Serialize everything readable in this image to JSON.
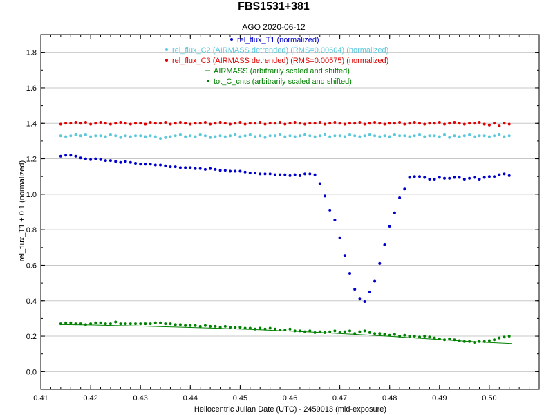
{
  "chart_data": {
    "type": "scatter",
    "title": "FBS1531+381",
    "subtitle": "AGO 2020-06-12",
    "xlabel": "Heliocentric Julian Date (UTC) - 2459013 (mid-exposure)",
    "ylabel": "rel_flux_T1 + 0.1 (normalized)",
    "xlim": [
      0.41,
      0.51
    ],
    "ylim": [
      -0.1,
      1.9
    ],
    "xticks": [
      0.41,
      0.42,
      0.43,
      0.44,
      0.45,
      0.46,
      0.47,
      0.48,
      0.49,
      0.5
    ],
    "xtick_labels": [
      "0.41",
      "0.42",
      "0.43",
      "0.44",
      "0.45",
      "0.46",
      "0.47",
      "0.48",
      "0.49",
      "0.50"
    ],
    "yticks": [
      0.0,
      0.2,
      0.4,
      0.6,
      0.8,
      1.0,
      1.2,
      1.4,
      1.6,
      1.8
    ],
    "ytick_labels": [
      "0.0",
      "0.2",
      "0.4",
      "0.6",
      "0.8",
      "1.0",
      "1.2",
      "1.4",
      "1.6",
      "1.8"
    ],
    "grid": "horizontal",
    "legend_placement": "top-center",
    "series": [
      {
        "name": "rel_flux_T1 (normalized)",
        "color": "#0000cc",
        "marker": "dot",
        "x": [
          0.414,
          0.415,
          0.416,
          0.417,
          0.418,
          0.419,
          0.42,
          0.421,
          0.422,
          0.423,
          0.424,
          0.425,
          0.426,
          0.427,
          0.428,
          0.429,
          0.43,
          0.431,
          0.432,
          0.433,
          0.434,
          0.435,
          0.436,
          0.437,
          0.438,
          0.439,
          0.44,
          0.441,
          0.442,
          0.443,
          0.444,
          0.445,
          0.446,
          0.447,
          0.448,
          0.449,
          0.45,
          0.451,
          0.452,
          0.453,
          0.454,
          0.455,
          0.456,
          0.457,
          0.458,
          0.459,
          0.46,
          0.461,
          0.462,
          0.463,
          0.464,
          0.465,
          0.466,
          0.467,
          0.468,
          0.469,
          0.47,
          0.471,
          0.472,
          0.473,
          0.474,
          0.475,
          0.476,
          0.477,
          0.478,
          0.479,
          0.48,
          0.481,
          0.482,
          0.483,
          0.484,
          0.485,
          0.486,
          0.487,
          0.488,
          0.489,
          0.49,
          0.491,
          0.492,
          0.493,
          0.494,
          0.495,
          0.496,
          0.497,
          0.498,
          0.499,
          0.5,
          0.501,
          0.502,
          0.503,
          0.504
        ],
        "y": [
          1.215,
          1.22,
          1.22,
          1.215,
          1.205,
          1.2,
          1.195,
          1.2,
          1.195,
          1.19,
          1.19,
          1.185,
          1.18,
          1.185,
          1.18,
          1.175,
          1.17,
          1.17,
          1.17,
          1.165,
          1.165,
          1.16,
          1.155,
          1.155,
          1.15,
          1.15,
          1.15,
          1.145,
          1.145,
          1.14,
          1.145,
          1.14,
          1.135,
          1.135,
          1.13,
          1.13,
          1.13,
          1.125,
          1.12,
          1.12,
          1.115,
          1.115,
          1.115,
          1.11,
          1.11,
          1.11,
          1.105,
          1.11,
          1.105,
          1.115,
          1.115,
          1.11,
          1.06,
          0.99,
          0.91,
          0.855,
          0.755,
          0.655,
          0.555,
          0.465,
          0.41,
          0.395,
          0.45,
          0.51,
          0.61,
          0.715,
          0.82,
          0.895,
          0.98,
          1.03,
          1.095,
          1.1,
          1.1,
          1.095,
          1.085,
          1.085,
          1.095,
          1.09,
          1.09,
          1.095,
          1.095,
          1.085,
          1.09,
          1.095,
          1.085,
          1.095,
          1.1,
          1.1,
          1.11,
          1.115,
          1.105
        ]
      },
      {
        "name": "rel_flux_C2 (AIRMASS detrended) (RMS=0.00604) (normalized)",
        "color": "#5bc8dc",
        "marker": "dot",
        "x": [
          0.414,
          0.415,
          0.416,
          0.417,
          0.418,
          0.419,
          0.42,
          0.421,
          0.422,
          0.423,
          0.424,
          0.425,
          0.426,
          0.427,
          0.428,
          0.429,
          0.43,
          0.431,
          0.432,
          0.433,
          0.434,
          0.435,
          0.436,
          0.437,
          0.438,
          0.439,
          0.44,
          0.441,
          0.442,
          0.443,
          0.444,
          0.445,
          0.446,
          0.447,
          0.448,
          0.449,
          0.45,
          0.451,
          0.452,
          0.453,
          0.454,
          0.455,
          0.456,
          0.457,
          0.458,
          0.459,
          0.46,
          0.461,
          0.462,
          0.463,
          0.464,
          0.465,
          0.466,
          0.467,
          0.468,
          0.469,
          0.47,
          0.471,
          0.472,
          0.473,
          0.474,
          0.475,
          0.476,
          0.477,
          0.478,
          0.479,
          0.48,
          0.481,
          0.482,
          0.483,
          0.484,
          0.485,
          0.486,
          0.487,
          0.488,
          0.489,
          0.49,
          0.491,
          0.492,
          0.493,
          0.494,
          0.495,
          0.496,
          0.497,
          0.498,
          0.499,
          0.5,
          0.501,
          0.502,
          0.503,
          0.504
        ],
        "y": [
          1.33,
          1.325,
          1.33,
          1.335,
          1.33,
          1.335,
          1.325,
          1.33,
          1.33,
          1.325,
          1.335,
          1.33,
          1.32,
          1.33,
          1.325,
          1.33,
          1.33,
          1.325,
          1.33,
          1.325,
          1.315,
          1.32,
          1.325,
          1.33,
          1.335,
          1.325,
          1.33,
          1.325,
          1.335,
          1.33,
          1.32,
          1.325,
          1.33,
          1.325,
          1.33,
          1.335,
          1.325,
          1.33,
          1.335,
          1.325,
          1.33,
          1.32,
          1.33,
          1.33,
          1.335,
          1.325,
          1.33,
          1.325,
          1.33,
          1.335,
          1.33,
          1.325,
          1.33,
          1.335,
          1.325,
          1.33,
          1.33,
          1.325,
          1.335,
          1.33,
          1.325,
          1.33,
          1.335,
          1.33,
          1.325,
          1.33,
          1.325,
          1.335,
          1.33,
          1.33,
          1.325,
          1.33,
          1.335,
          1.325,
          1.33,
          1.33,
          1.325,
          1.335,
          1.32,
          1.33,
          1.325,
          1.33,
          1.335,
          1.325,
          1.33,
          1.33,
          1.325,
          1.33,
          1.335,
          1.325,
          1.33
        ]
      },
      {
        "name": "rel_flux_C3 (AIRMASS detrended) (RMS=0.00575) (normalized)",
        "color": "#e00000",
        "marker": "dot",
        "x": [
          0.414,
          0.415,
          0.416,
          0.417,
          0.418,
          0.419,
          0.42,
          0.421,
          0.422,
          0.423,
          0.424,
          0.425,
          0.426,
          0.427,
          0.428,
          0.429,
          0.43,
          0.431,
          0.432,
          0.433,
          0.434,
          0.435,
          0.436,
          0.437,
          0.438,
          0.439,
          0.44,
          0.441,
          0.442,
          0.443,
          0.444,
          0.445,
          0.446,
          0.447,
          0.448,
          0.449,
          0.45,
          0.451,
          0.452,
          0.453,
          0.454,
          0.455,
          0.456,
          0.457,
          0.458,
          0.459,
          0.46,
          0.461,
          0.462,
          0.463,
          0.464,
          0.465,
          0.466,
          0.467,
          0.468,
          0.469,
          0.47,
          0.471,
          0.472,
          0.473,
          0.474,
          0.475,
          0.476,
          0.477,
          0.478,
          0.479,
          0.48,
          0.481,
          0.482,
          0.483,
          0.484,
          0.485,
          0.486,
          0.487,
          0.488,
          0.489,
          0.49,
          0.491,
          0.492,
          0.493,
          0.494,
          0.495,
          0.496,
          0.497,
          0.498,
          0.499,
          0.5,
          0.501,
          0.502,
          0.503,
          0.504
        ],
        "y": [
          1.395,
          1.4,
          1.4,
          1.405,
          1.4,
          1.405,
          1.395,
          1.4,
          1.405,
          1.4,
          1.395,
          1.4,
          1.405,
          1.4,
          1.395,
          1.4,
          1.4,
          1.395,
          1.405,
          1.4,
          1.4,
          1.405,
          1.395,
          1.4,
          1.405,
          1.4,
          1.395,
          1.4,
          1.4,
          1.405,
          1.395,
          1.4,
          1.405,
          1.4,
          1.395,
          1.4,
          1.405,
          1.395,
          1.4,
          1.4,
          1.405,
          1.395,
          1.4,
          1.4,
          1.405,
          1.395,
          1.4,
          1.405,
          1.4,
          1.395,
          1.4,
          1.4,
          1.405,
          1.395,
          1.4,
          1.405,
          1.4,
          1.395,
          1.4,
          1.4,
          1.405,
          1.395,
          1.4,
          1.405,
          1.4,
          1.395,
          1.4,
          1.4,
          1.405,
          1.395,
          1.4,
          1.405,
          1.4,
          1.395,
          1.4,
          1.4,
          1.405,
          1.395,
          1.4,
          1.405,
          1.4,
          1.395,
          1.4,
          1.4,
          1.405,
          1.395,
          1.39,
          1.4,
          1.385,
          1.4,
          1.395
        ]
      },
      {
        "name": "AIRMASS (arbitrarily scaled and shifted)",
        "color": "#008000",
        "marker": "line",
        "x": [
          0.414,
          0.42,
          0.425,
          0.43,
          0.435,
          0.44,
          0.445,
          0.45,
          0.455,
          0.46,
          0.465,
          0.47,
          0.475,
          0.48,
          0.485,
          0.49,
          0.495,
          0.5,
          0.5045
        ],
        "y": [
          0.265,
          0.263,
          0.26,
          0.257,
          0.253,
          0.249,
          0.245,
          0.24,
          0.235,
          0.229,
          0.222,
          0.215,
          0.207,
          0.199,
          0.19,
          0.181,
          0.172,
          0.164,
          0.158
        ]
      },
      {
        "name": "tot_C_cnts (arbitrarily scaled and shifted)",
        "color": "#008000",
        "marker": "dot",
        "x": [
          0.414,
          0.415,
          0.416,
          0.417,
          0.418,
          0.419,
          0.42,
          0.421,
          0.422,
          0.423,
          0.424,
          0.425,
          0.426,
          0.427,
          0.428,
          0.429,
          0.43,
          0.431,
          0.432,
          0.433,
          0.434,
          0.435,
          0.436,
          0.437,
          0.438,
          0.439,
          0.44,
          0.441,
          0.442,
          0.443,
          0.444,
          0.445,
          0.446,
          0.447,
          0.448,
          0.449,
          0.45,
          0.451,
          0.452,
          0.453,
          0.454,
          0.455,
          0.456,
          0.457,
          0.458,
          0.459,
          0.46,
          0.461,
          0.462,
          0.463,
          0.464,
          0.465,
          0.466,
          0.467,
          0.468,
          0.469,
          0.47,
          0.471,
          0.472,
          0.473,
          0.474,
          0.475,
          0.476,
          0.477,
          0.478,
          0.479,
          0.48,
          0.481,
          0.482,
          0.483,
          0.484,
          0.485,
          0.486,
          0.487,
          0.488,
          0.489,
          0.49,
          0.491,
          0.492,
          0.493,
          0.494,
          0.495,
          0.496,
          0.497,
          0.498,
          0.499,
          0.5,
          0.501,
          0.502,
          0.503,
          0.504
        ],
        "y": [
          0.27,
          0.275,
          0.275,
          0.27,
          0.27,
          0.265,
          0.27,
          0.275,
          0.275,
          0.27,
          0.27,
          0.28,
          0.27,
          0.27,
          0.27,
          0.27,
          0.27,
          0.27,
          0.27,
          0.275,
          0.275,
          0.27,
          0.27,
          0.265,
          0.265,
          0.26,
          0.26,
          0.26,
          0.255,
          0.26,
          0.255,
          0.255,
          0.25,
          0.255,
          0.25,
          0.25,
          0.25,
          0.245,
          0.245,
          0.24,
          0.245,
          0.24,
          0.245,
          0.24,
          0.235,
          0.235,
          0.24,
          0.23,
          0.23,
          0.225,
          0.23,
          0.22,
          0.225,
          0.22,
          0.225,
          0.23,
          0.22,
          0.225,
          0.23,
          0.215,
          0.225,
          0.23,
          0.22,
          0.215,
          0.215,
          0.21,
          0.205,
          0.21,
          0.2,
          0.205,
          0.2,
          0.2,
          0.195,
          0.2,
          0.195,
          0.19,
          0.185,
          0.18,
          0.185,
          0.18,
          0.175,
          0.17,
          0.17,
          0.165,
          0.17,
          0.17,
          0.175,
          0.18,
          0.19,
          0.195,
          0.2
        ]
      }
    ]
  }
}
